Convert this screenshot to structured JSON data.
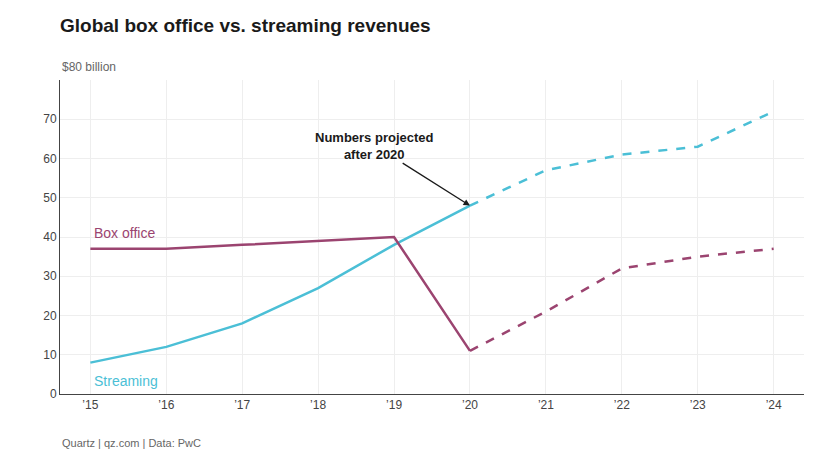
{
  "chart_data": {
    "type": "line",
    "title": "Global box office vs. streaming revenues",
    "ylabel": "$80 billion",
    "footnote": "Quartz | qz.com | Data: PwC",
    "annotation": "Numbers projected\nafter 2020",
    "x": [
      2015,
      2016,
      2017,
      2018,
      2019,
      2020,
      2021,
      2022,
      2023,
      2024
    ],
    "series": [
      {
        "name": "Streaming",
        "color": "#4bbfd6",
        "line_style": "solid",
        "values": [
          8,
          12,
          18,
          27,
          38,
          48,
          null,
          null,
          null,
          null
        ]
      },
      {
        "name": "Box office",
        "color": "#9b4470",
        "line_style": "solid",
        "values": [
          37,
          37,
          38,
          39,
          40,
          11,
          null,
          null,
          null,
          null
        ]
      },
      {
        "name": "Streaming",
        "color": "#4bbfd6",
        "line_style": "dashed",
        "values": [
          null,
          null,
          null,
          null,
          null,
          48,
          57,
          61,
          63,
          72
        ]
      },
      {
        "name": "Box office",
        "color": "#9b4470",
        "line_style": "dashed",
        "values": [
          null,
          null,
          null,
          null,
          null,
          11,
          21,
          32,
          35,
          37
        ]
      }
    ],
    "xlim": [
      2014.6,
      2024.4
    ],
    "ylim": [
      0,
      80
    ],
    "xticks": [
      {
        "value": 2015,
        "label": "’15"
      },
      {
        "value": 2016,
        "label": "’16"
      },
      {
        "value": 2017,
        "label": "’17"
      },
      {
        "value": 2018,
        "label": "’18"
      },
      {
        "value": 2019,
        "label": "’19"
      },
      {
        "value": 2020,
        "label": "’20"
      },
      {
        "value": 2021,
        "label": "’21"
      },
      {
        "value": 2022,
        "label": "’22"
      },
      {
        "value": 2023,
        "label": "’23"
      },
      {
        "value": 2024,
        "label": "’24"
      }
    ],
    "yticks": [
      0,
      10,
      20,
      30,
      40,
      50,
      60,
      70
    ],
    "grid": true
  }
}
